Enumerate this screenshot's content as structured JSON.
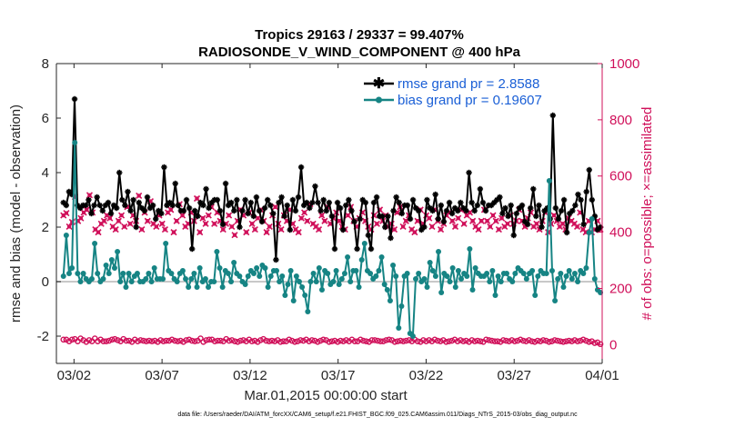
{
  "chart_data": {
    "type": "line",
    "title_line1": "Tropics 29163 / 29337 = 99.407%",
    "title_line2": "RADIOSONDE_V_WIND_COMPONENT @ 400 hPa",
    "xlabel": "Mar.01,2015 00:00:00 start",
    "ylabel_left": "rmse and bias (model - observation)",
    "ylabel_right": "# of obs: o=possible; ×=assimilated",
    "footnote": "data file: /Users/raeder/DAI/ATM_forcXX/CAM6_setup/f.e21.FHIST_BGC.f09_025.CAM6assim.011/Diags_NTrS_2015-03/obs_diag_output.nc",
    "xlim": [
      0,
      31
    ],
    "ylim_left": [
      -3,
      8
    ],
    "ylim_right": [
      -66.67,
      1000
    ],
    "xticks": [
      1,
      6,
      11,
      16,
      21,
      26,
      31
    ],
    "xtick_labels": [
      "03/02",
      "03/07",
      "03/12",
      "03/17",
      "03/22",
      "03/27",
      "04/01"
    ],
    "yticks_left": [
      "-2",
      "0",
      "2",
      "4",
      "6",
      "8"
    ],
    "yticks_left_values": [
      -2,
      0,
      2,
      4,
      6,
      8
    ],
    "yticks_right": [
      "0",
      "200",
      "400",
      "600",
      "800",
      "1000"
    ],
    "yticks_right_values": [
      0,
      200,
      400,
      600,
      800,
      1000
    ],
    "colors": {
      "rmse": "#000000",
      "bias": "#168484",
      "obs": "#d0105a",
      "right_axis": "#d0105a",
      "legend_text": "#1a5fd6",
      "zero_line": "#c8c8c8"
    },
    "series": [
      {
        "name": "rmse grand pr = 2.8588",
        "axis": "left",
        "values": [
          2.9,
          2.8,
          3.3,
          3.2,
          6.7,
          2.8,
          2.7,
          2.8,
          2.8,
          3.0,
          2.5,
          2.8,
          3.1,
          2.8,
          2.6,
          2.8,
          2.9,
          2.5,
          2.8,
          2.7,
          4.0,
          3.0,
          2.8,
          3.3,
          2.6,
          3.0,
          2.0,
          2.9,
          2.7,
          2.6,
          3.1,
          2.7,
          2.8,
          2.3,
          2.6,
          2.5,
          4.2,
          2.8,
          2.9,
          2.8,
          3.6,
          2.8,
          2.6,
          2.6,
          3.0,
          2.7,
          1.2,
          2.6,
          2.4,
          2.9,
          2.8,
          3.4,
          2.7,
          2.9,
          3.0,
          3.0,
          2.6,
          2.1,
          3.6,
          2.8,
          2.9,
          2.6,
          3.0,
          2.0,
          2.6,
          3.0,
          2.5,
          2.9,
          2.4,
          3.1,
          2.6,
          2.2,
          2.7,
          3.0,
          2.8,
          2.5,
          0.8,
          2.9,
          3.1,
          2.4,
          2.8,
          1.9,
          3.0,
          2.6,
          3.1,
          4.2,
          2.8,
          2.9,
          2.7,
          2.9,
          3.5,
          2.9,
          2.6,
          3.0,
          2.6,
          2.9,
          2.4,
          1.2,
          2.9,
          2.7,
          1.9,
          2.8,
          3.0,
          2.6,
          2.2,
          1.2,
          2.3,
          3.0,
          2.9,
          1.7,
          1.2,
          2.9,
          3.1,
          2.4,
          2.4,
          2.0,
          2.4,
          1.6,
          2.6,
          3.1,
          2.9,
          2.5,
          2.8,
          2.8,
          2.3,
          3.0,
          2.7,
          2.6,
          1.9,
          2.0,
          3.0,
          2.7,
          2.6,
          3.2,
          2.3,
          2.8,
          2.2,
          2.6,
          2.9,
          2.5,
          2.7,
          2.6,
          2.9,
          2.7,
          2.6,
          4.0,
          2.9,
          2.6,
          2.8,
          3.4,
          2.9,
          2.6,
          2.8,
          2.8,
          2.9,
          3.0,
          3.1,
          2.5,
          2.7,
          2.4,
          2.8,
          1.7,
          2.5,
          2.7,
          2.8,
          2.2,
          2.1,
          2.7,
          3.4,
          2.4,
          2.8,
          2.0,
          2.6,
          2.7,
          2.3,
          6.1,
          2.7,
          2.3,
          2.6,
          3.0,
          1.8,
          2.5,
          2.6,
          2.8,
          3.2,
          3.0,
          2.1,
          3.3,
          4.1,
          3.0,
          2.4,
          1.9,
          2.0
        ],
        "marker": "asterisk"
      },
      {
        "name": "bias grand pr = 0.19607",
        "axis": "left",
        "values": [
          0.2,
          1.7,
          0.3,
          0.5,
          5.1,
          0.3,
          0.0,
          0.3,
          0.1,
          0.0,
          0.1,
          1.4,
          0.3,
          0.0,
          0.1,
          0.6,
          0.3,
          0.8,
          0.5,
          1.1,
          0.0,
          0.3,
          -0.2,
          0.3,
          0.0,
          0.2,
          0.3,
          0.0,
          0.0,
          0.1,
          0.3,
          0.0,
          0.5,
          0.1,
          0.1,
          0.1,
          1.4,
          0.4,
          0.3,
          0.1,
          0.0,
          0.3,
          0.4,
          0.1,
          -0.2,
          0.1,
          0.3,
          -0.2,
          0.5,
          0.0,
          0.1,
          -0.2,
          0.0,
          0.0,
          1.1,
          0.5,
          -0.2,
          0.4,
          0.3,
          0.0,
          0.7,
          0.3,
          0.2,
          0.0,
          -0.1,
          0.2,
          0.4,
          0.3,
          0.5,
          0.2,
          0.6,
          0.5,
          -0.2,
          0.2,
          0.4,
          0.4,
          0.0,
          0.2,
          -0.5,
          -0.1,
          0.4,
          -0.7,
          0.2,
          0.0,
          -0.2,
          -0.5,
          -1.1,
          0.0,
          0.3,
          0.0,
          0.5,
          -0.3,
          0.4,
          0.3,
          -0.1,
          0.0,
          0.4,
          -0.1,
          0.1,
          0.3,
          0.9,
          0.0,
          0.4,
          0.4,
          -0.2,
          0.8,
          1.4,
          0.4,
          0.3,
          0.1,
          0.2,
          0.4,
          0.9,
          -0.1,
          -0.3,
          -0.7,
          0.6,
          0.2,
          -1.7,
          -0.9,
          0.2,
          0.3,
          -1.9,
          -2.0,
          0.1,
          0.3,
          0.0,
          0.1,
          -0.2,
          0.7,
          0.4,
          0.2,
          1.1,
          -0.4,
          0.3,
          0.2,
          0.0,
          0.5,
          -0.2,
          0.4,
          0.1,
          0.3,
          0.2,
          1.2,
          -0.3,
          0.5,
          0.3,
          0.2,
          0.2,
          0.3,
          0.0,
          0.4,
          -0.5,
          0.2,
          0.0,
          0.3,
          0.3,
          0.1,
          0.0,
          0.3,
          0.5,
          0.4,
          0.3,
          0.1,
          0.3,
          0.4,
          -0.5,
          0.2,
          0.4,
          0.3,
          0.3,
          3.7,
          0.4,
          -0.7,
          0.1,
          0.3,
          -0.2,
          0.2,
          0.4,
          0.1,
          0.3,
          0.0,
          0.4,
          0.3,
          0.5,
          1.8,
          2.3,
          0.1,
          -0.3,
          -0.4
        ],
        "marker": "circle"
      },
      {
        "name": "possible obs",
        "axis": "right",
        "values": [
          18,
          18,
          12,
          18,
          20,
          12,
          22,
          16,
          10,
          16,
          12,
          22,
          12,
          18,
          12,
          12,
          14,
          18,
          20,
          16,
          12,
          20,
          14,
          14,
          10,
          18,
          12,
          16,
          14,
          12,
          14,
          12,
          14,
          10,
          16,
          12,
          14,
          14,
          18,
          14,
          12,
          14,
          10,
          16,
          18,
          14,
          12,
          14,
          22,
          10,
          16,
          18,
          18,
          12,
          14,
          14,
          12,
          20,
          14,
          16,
          12,
          10,
          14,
          16,
          12,
          18,
          12,
          14,
          10,
          16,
          20,
          14,
          12,
          14,
          12,
          16,
          10,
          12,
          12,
          18,
          14,
          10,
          12,
          16,
          14,
          18,
          12,
          16,
          14,
          10,
          14,
          18,
          16,
          10,
          12,
          14,
          10,
          14,
          12,
          16,
          12,
          18,
          12,
          12,
          18,
          14,
          12,
          10,
          16,
          16,
          14,
          12,
          12,
          16,
          18,
          16,
          10,
          12,
          14,
          12,
          14,
          16,
          12,
          18,
          12,
          10,
          16,
          12,
          16,
          12,
          18,
          14,
          12,
          16,
          10,
          12,
          14,
          18,
          12,
          16,
          12,
          14,
          10,
          16,
          12,
          14,
          12,
          10,
          18,
          16,
          14,
          12,
          12,
          10,
          16,
          14,
          12,
          16,
          12,
          14,
          18,
          14,
          12,
          16,
          12,
          10,
          14,
          12,
          16,
          14,
          10,
          12,
          16,
          14,
          12,
          10,
          12,
          14,
          12,
          16,
          12,
          14,
          18,
          14,
          10,
          12,
          6,
          8,
          2
        ],
        "marker": "circle-open"
      },
      {
        "name": "assimilated obs",
        "axis": "right",
        "values": [
          460,
          468,
          420,
          436,
          526,
          440,
          450,
          470,
          480,
          532,
          470,
          410,
          400,
          430,
          440,
          460,
          450,
          420,
          410,
          440,
          460,
          420,
          490,
          430,
          460,
          440,
          530,
          410,
          470,
          440,
          510,
          430,
          420,
          460,
          430,
          410,
          470,
          480,
          400,
          440,
          500,
          460,
          420,
          430,
          470,
          440,
          520,
          400,
          450,
          430,
          460,
          490,
          430,
          470,
          440,
          410,
          430,
          460,
          420,
          390,
          440,
          480,
          460,
          400,
          470,
          430,
          410,
          450,
          480,
          440,
          400,
          420,
          460,
          490,
          430,
          410,
          460,
          440,
          480,
          430,
          410,
          400,
          450,
          470,
          440,
          500,
          430,
          420,
          410,
          460,
          440,
          490,
          430,
          450,
          470,
          440,
          420,
          410,
          460,
          490,
          440,
          420,
          450,
          470,
          440,
          420,
          410,
          460,
          430,
          480,
          440,
          460,
          420,
          430,
          410,
          470,
          490,
          420,
          440,
          460,
          410,
          400,
          440,
          480,
          430,
          460,
          450,
          420,
          480,
          440,
          410,
          430,
          460,
          470,
          440,
          420,
          450,
          480,
          430,
          460,
          470,
          440,
          420,
          410,
          440,
          480,
          440,
          420,
          460,
          440,
          410,
          450,
          420,
          430,
          460,
          430,
          440,
          480,
          440,
          420,
          450,
          470,
          420,
          430,
          410,
          440,
          470,
          400,
          430,
          460,
          440,
          420,
          430,
          410,
          450,
          440,
          430,
          420,
          470,
          410,
          400,
          440,
          400,
          410,
          440,
          410
        ],
        "marker": "cross"
      }
    ],
    "legend": [
      "rmse grand pr = 2.8588",
      "bias grand pr = 0.19607"
    ],
    "legend_position": "top-right",
    "grid": false
  }
}
